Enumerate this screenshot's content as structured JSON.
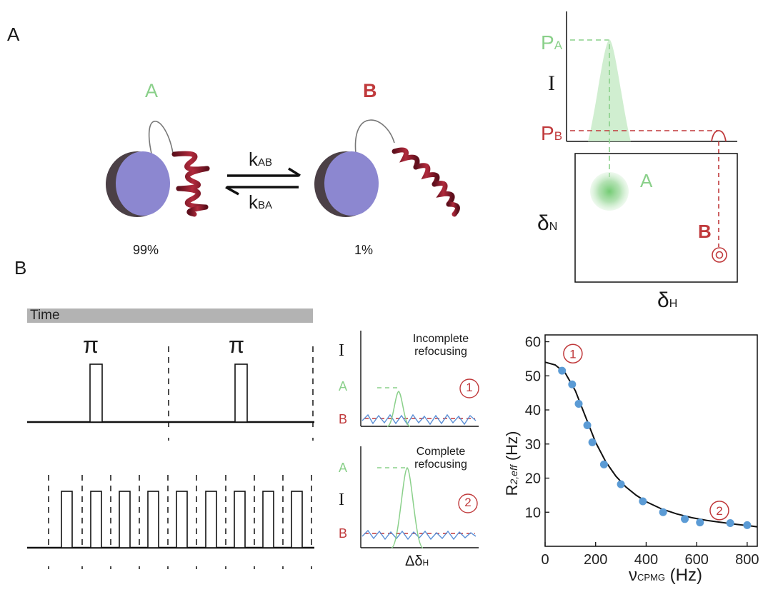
{
  "panels": {
    "a": "A",
    "b": "B"
  },
  "states": {
    "a_label": "A",
    "b_label": "B",
    "a_pct": "99%",
    "b_pct": "1%",
    "k_forward": "k",
    "k_forward_sub": "AB",
    "k_reverse": "k",
    "k_reverse_sub": "BA"
  },
  "spectrum": {
    "intensity_label": "I",
    "pa_main": "P",
    "pa_sub": "A",
    "pb_main": "P",
    "pb_sub": "B",
    "peak_a_label": "A",
    "peak_b_label": "B",
    "y_main": "δ",
    "y_sub": "N",
    "x_main": "δ",
    "x_sub": "H"
  },
  "pulse": {
    "time_label": "Time",
    "pi_left": "π",
    "pi_right": "π"
  },
  "mini": {
    "top_caption_1": "Incomplete",
    "top_caption_2": "refocusing",
    "bottom_caption_1": "Complete",
    "bottom_caption_2": "refocusing",
    "intensity_label": "I",
    "a_label": "A",
    "b_label": "B",
    "marker_1": "1",
    "marker_2": "2",
    "x_main": "Δδ",
    "x_sub": "H"
  },
  "chart_data": {
    "type": "scatter",
    "ylabel_main": "R",
    "ylabel_sub": "2,eff",
    "ylabel_unit": "(Hz)",
    "xlabel_main": "ν",
    "xlabel_sub": "CPMG",
    "xlabel_unit": "(Hz)",
    "xlim": [
      0,
      840
    ],
    "ylim": [
      0,
      62
    ],
    "xticks": [
      0,
      200,
      400,
      600,
      800
    ],
    "yticks": [
      10,
      20,
      30,
      40,
      50,
      60
    ],
    "points": [
      {
        "x": 67,
        "y": 51.5
      },
      {
        "x": 107,
        "y": 47.5
      },
      {
        "x": 133,
        "y": 41.8
      },
      {
        "x": 167,
        "y": 35.5
      },
      {
        "x": 187,
        "y": 30.5
      },
      {
        "x": 233,
        "y": 24.0
      },
      {
        "x": 300,
        "y": 18.2
      },
      {
        "x": 387,
        "y": 13.2
      },
      {
        "x": 467,
        "y": 10.0
      },
      {
        "x": 553,
        "y": 8.0
      },
      {
        "x": 613,
        "y": 7.0
      },
      {
        "x": 733,
        "y": 6.8
      },
      {
        "x": 800,
        "y": 6.2
      }
    ],
    "fit": [
      {
        "x": 0,
        "y": 54.0
      },
      {
        "x": 40,
        "y": 53.2
      },
      {
        "x": 80,
        "y": 50.8
      },
      {
        "x": 120,
        "y": 45.6
      },
      {
        "x": 160,
        "y": 38.0
      },
      {
        "x": 200,
        "y": 30.5
      },
      {
        "x": 240,
        "y": 24.8
      },
      {
        "x": 280,
        "y": 20.6
      },
      {
        "x": 320,
        "y": 17.4
      },
      {
        "x": 360,
        "y": 15.0
      },
      {
        "x": 400,
        "y": 13.1
      },
      {
        "x": 460,
        "y": 11.0
      },
      {
        "x": 520,
        "y": 9.5
      },
      {
        "x": 580,
        "y": 8.4
      },
      {
        "x": 640,
        "y": 7.6
      },
      {
        "x": 700,
        "y": 7.0
      },
      {
        "x": 760,
        "y": 6.4
      },
      {
        "x": 820,
        "y": 5.9
      },
      {
        "x": 840,
        "y": 5.7
      }
    ],
    "annotations": [
      {
        "label": "1",
        "x": 110,
        "y": 56.5
      },
      {
        "label": "2",
        "x": 690,
        "y": 10.5
      }
    ],
    "colors": {
      "points": "#5b9bd5",
      "fit": "#111111",
      "annotation": "#c0393b"
    }
  },
  "colors": {
    "green": "#8ad08a",
    "red": "#c0393b",
    "blue_domain": "#8c87d0",
    "helix": "#8b1a2b"
  }
}
